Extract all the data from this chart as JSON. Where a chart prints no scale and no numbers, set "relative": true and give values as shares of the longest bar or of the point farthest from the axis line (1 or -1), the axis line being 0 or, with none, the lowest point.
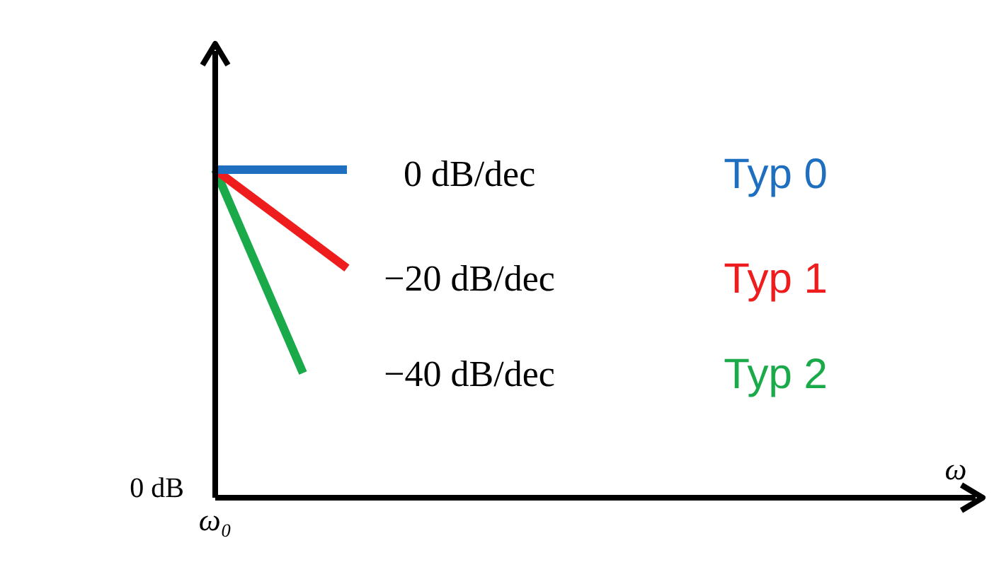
{
  "chart_data": {
    "type": "line",
    "relative": true,
    "categories": [
      null,
      null,
      null,
      null
    ],
    "marker": "none",
    "line_style": "solid",
    "series": [
      {
        "name": "Typ 0",
        "color": "#1f6fc0",
        "values": [
          1,
          1,
          1,
          1
        ]
      },
      {
        "name": "Typ 1",
        "color": "#ee1c1c",
        "values": [
          1,
          0.9,
          0.8,
          0.7
        ]
      },
      {
        "name": "Typ 2",
        "color": "#1aaa4a",
        "values": [
          1,
          0.69,
          0.38,
          null
        ]
      }
    ],
    "annotations": [
      "0 dB/dec",
      "−20 dB/dec",
      "−40 dB/dec",
      "0 dB",
      "ω₀",
      "ω"
    ]
  }
}
